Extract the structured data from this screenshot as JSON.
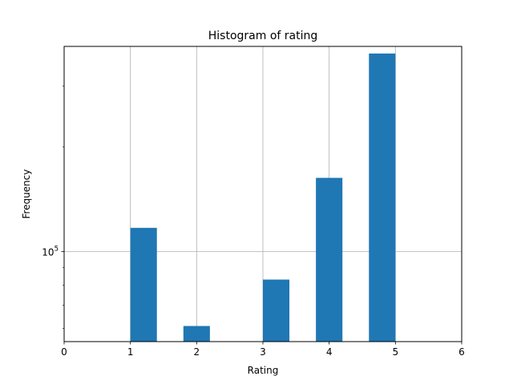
{
  "chart_data": {
    "type": "bar",
    "title": "Histogram of rating",
    "xlabel": "Rating",
    "ylabel": "Frequency",
    "xlim": [
      0,
      6
    ],
    "ylim": [
      55000,
      390000
    ],
    "yscale": "log",
    "grid": true,
    "bar_color": "#1f77b4",
    "xticks": [
      0,
      1,
      2,
      3,
      4,
      5,
      6
    ],
    "yticks": [
      {
        "value": 100000,
        "base": "10",
        "exp": "5"
      }
    ],
    "bar_width": 0.4,
    "bins": [
      {
        "x0": 1.0,
        "value": 117000
      },
      {
        "x0": 1.8,
        "value": 61000
      },
      {
        "x0": 3.0,
        "value": 83000
      },
      {
        "x0": 3.8,
        "value": 163000
      },
      {
        "x0": 4.6,
        "value": 372000
      }
    ]
  }
}
